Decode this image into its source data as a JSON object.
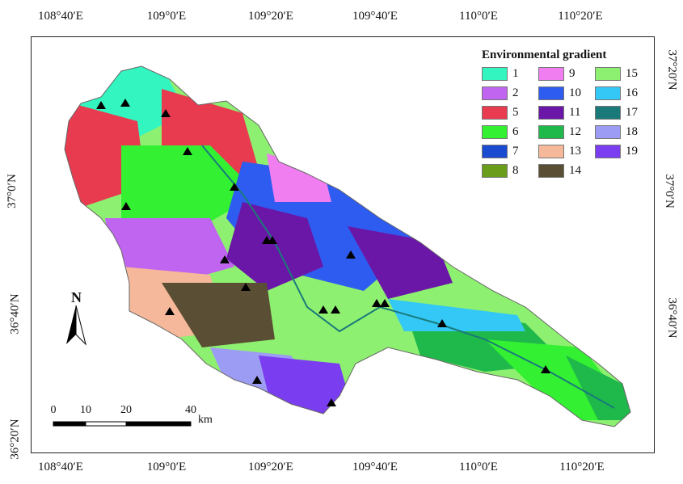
{
  "map": {
    "legend_title": "Environmental gradient",
    "legend": [
      {
        "label": "1",
        "color": "#33f5c0"
      },
      {
        "label": "9",
        "color": "#f07ef0"
      },
      {
        "label": "15",
        "color": "#8ef070"
      },
      {
        "label": "2",
        "color": "#c065f0"
      },
      {
        "label": "10",
        "color": "#2e5cf0"
      },
      {
        "label": "16",
        "color": "#33c8f5"
      },
      {
        "label": "5",
        "color": "#e83b50"
      },
      {
        "label": "11",
        "color": "#6a17a8"
      },
      {
        "label": "17",
        "color": "#1a7a7a"
      },
      {
        "label": "6",
        "color": "#33f033"
      },
      {
        "label": "12",
        "color": "#1fb84a"
      },
      {
        "label": "18",
        "color": "#9d9cf5"
      },
      {
        "label": "7",
        "color": "#1a4ad0"
      },
      {
        "label": "13",
        "color": "#f5b89a"
      },
      {
        "label": "19",
        "color": "#7a3df0"
      },
      {
        "label": "8",
        "color": "#6a9e1a"
      },
      {
        "label": "14",
        "color": "#5a4e34"
      }
    ],
    "top_labels": [
      "108°40′E",
      "109°0′E",
      "109°20′E",
      "109°40′E",
      "110°0′E",
      "110°20′E"
    ],
    "bottom_labels": [
      "108°40′E",
      "109°0′E",
      "109°20′E",
      "109°40′E",
      "110°0′E",
      "110°20′E"
    ],
    "left_labels": [
      "37°0′N",
      "36°40′N",
      "36°20′N"
    ],
    "right_labels": [
      "37°20′N",
      "37°0′N",
      "36°40′N"
    ],
    "north_label": "N",
    "scale": {
      "ticks": [
        "0",
        "10",
        "20",
        "40"
      ],
      "unit": "km"
    }
  }
}
